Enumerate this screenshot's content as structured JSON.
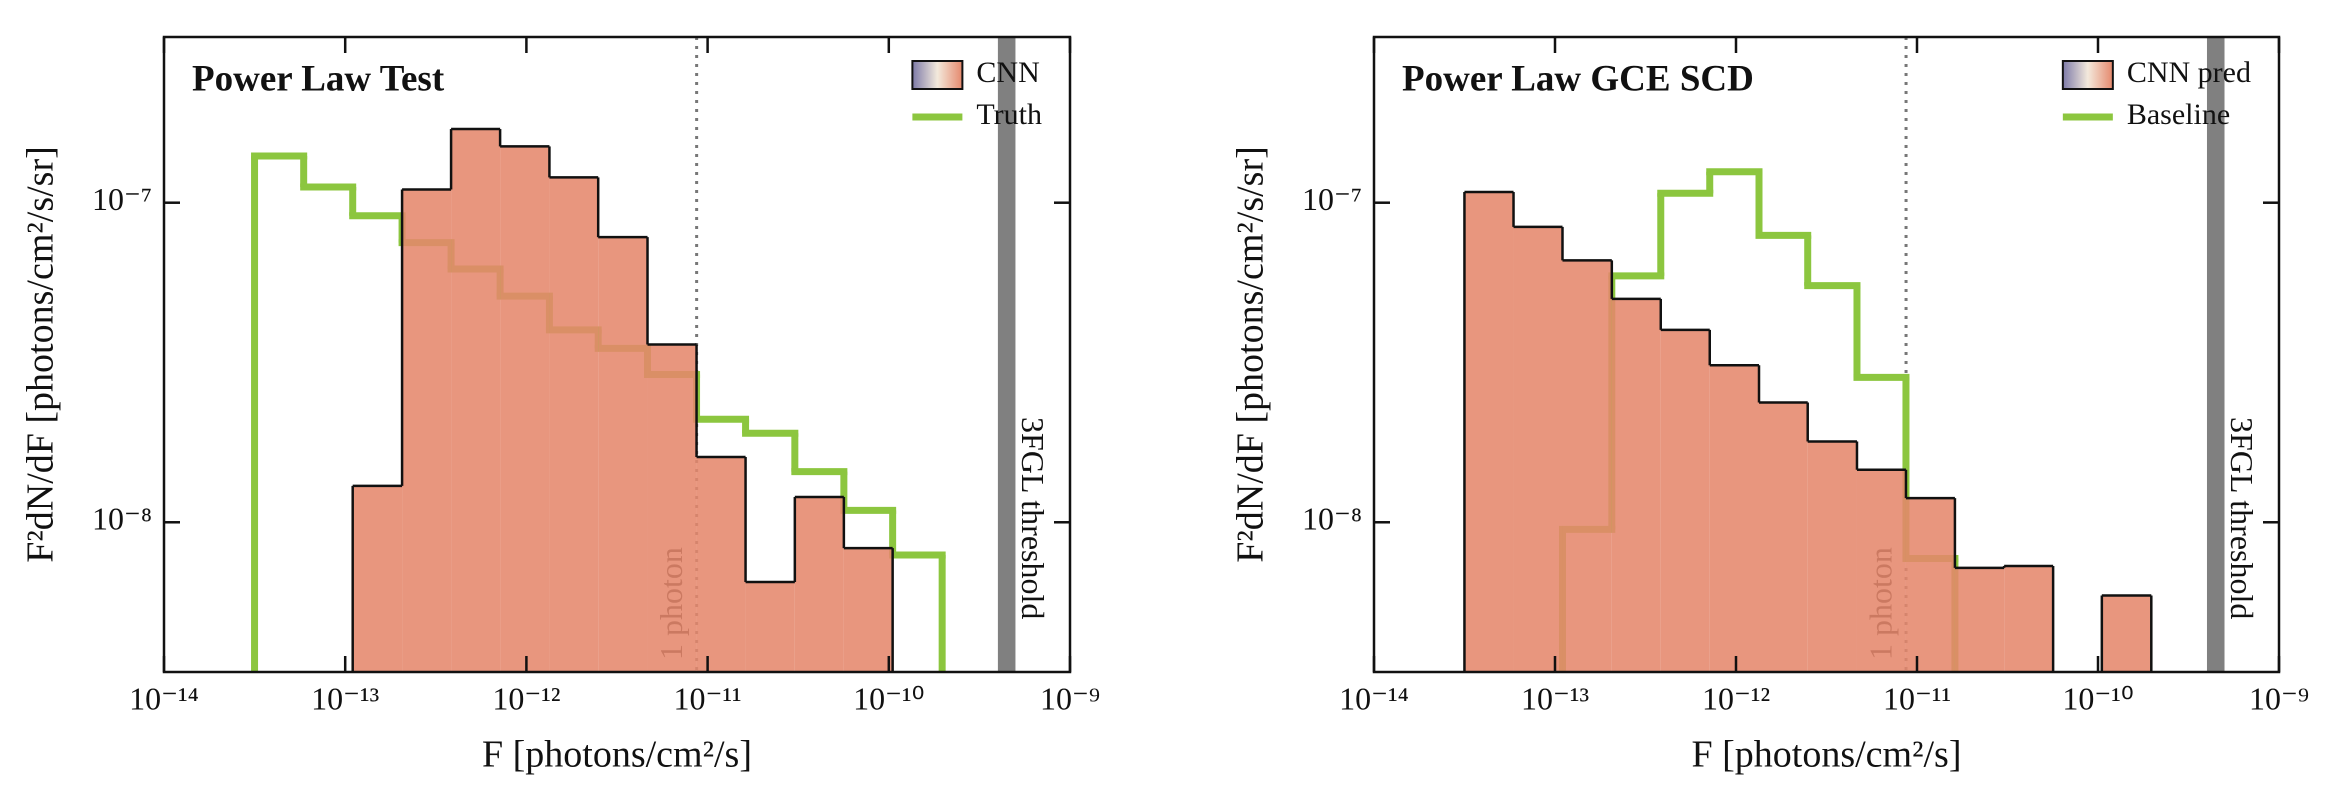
{
  "chart_data": [
    {
      "type": "histogram",
      "title": "Power Law Test",
      "xlabel": "F [photons/cm²/s]",
      "ylabel": "F²dN/dF [photons/cm²/s/sr]",
      "bins": [
        3.16e-14,
        5.9e-14,
        1.1e-13,
        2.06e-13,
        3.84e-13,
        7.16e-13,
        1.34e-12,
        2.49e-12,
        4.66e-12,
        8.69e-12,
        1.62e-11,
        3.03e-11,
        5.65e-11,
        1.05e-10,
        1.97e-10
      ],
      "series": [
        {
          "name": "CNN",
          "color": "#e5886c",
          "values": [
            null,
            null,
            1.3e-08,
            1.1e-07,
            1.7e-07,
            1.5e-07,
            1.2e-07,
            7.8e-08,
            3.6e-08,
            1.6e-08,
            6.5e-09,
            1.2e-08,
            8.3e-09,
            null
          ]
        },
        {
          "name": "Truth",
          "color": "#8cc63f",
          "values": [
            1.4e-07,
            1.12e-07,
            9.1e-08,
            7.5e-08,
            6.2e-08,
            5.1e-08,
            4e-08,
            3.5e-08,
            2.9e-08,
            2.1e-08,
            1.9e-08,
            1.44e-08,
            1.09e-08,
            7.9e-09
          ]
        }
      ],
      "xlim": [
        1e-14,
        1e-09
      ],
      "xticks": [
        {
          "value": 1e-14,
          "label": "10⁻¹⁴"
        },
        {
          "value": 1e-13,
          "label": "10⁻¹³"
        },
        {
          "value": 1e-12,
          "label": "10⁻¹²"
        },
        {
          "value": 1e-11,
          "label": "10⁻¹¹"
        },
        {
          "value": 1e-10,
          "label": "10⁻¹⁰"
        },
        {
          "value": 1e-09,
          "label": "10⁻⁹"
        }
      ],
      "ylim": [
        3.4e-09,
        3.3e-07
      ],
      "yticks": [
        {
          "value": 1e-08,
          "label": "10⁻⁸"
        },
        {
          "value": 1e-07,
          "label": "10⁻⁷"
        }
      ],
      "log_x": true,
      "log_y": true,
      "legend": "upper right",
      "annotations": [
        {
          "text": "1 photon",
          "x": 8.7e-12
        },
        {
          "text": "3FGL threshold",
          "xrange": [
            4e-10,
            5e-10
          ]
        }
      ]
    },
    {
      "type": "histogram",
      "title": "Power Law GCE SCD",
      "xlabel": "F [photons/cm²/s]",
      "ylabel": "F²dN/dF [photons/cm²/s/sr]",
      "bins": [
        3.16e-14,
        5.9e-14,
        1.1e-13,
        2.06e-13,
        3.84e-13,
        7.16e-13,
        1.34e-12,
        2.49e-12,
        4.66e-12,
        8.69e-12,
        1.62e-11,
        3.03e-11,
        5.65e-11,
        1.05e-10,
        1.97e-10
      ],
      "series": [
        {
          "name": "CNN pred",
          "color": "#e5886c",
          "values": [
            1.08e-07,
            8.4e-08,
            6.6e-08,
            5e-08,
            4e-08,
            3.1e-08,
            2.37e-08,
            1.79e-08,
            1.46e-08,
            1.19e-08,
            7.2e-09,
            7.3e-09,
            null,
            5.9e-09
          ]
        },
        {
          "name": "Baseline",
          "color": "#8cc63f",
          "values": [
            null,
            null,
            9.5e-09,
            5.9e-08,
            1.07e-07,
            1.25e-07,
            7.9e-08,
            5.5e-08,
            2.84e-08,
            7.7e-09,
            null,
            null,
            null,
            null
          ]
        }
      ],
      "xlim": [
        1e-14,
        1e-09
      ],
      "xticks": [
        {
          "value": 1e-14,
          "label": "10⁻¹⁴"
        },
        {
          "value": 1e-13,
          "label": "10⁻¹³"
        },
        {
          "value": 1e-12,
          "label": "10⁻¹²"
        },
        {
          "value": 1e-11,
          "label": "10⁻¹¹"
        },
        {
          "value": 1e-10,
          "label": "10⁻¹⁰"
        },
        {
          "value": 1e-09,
          "label": "10⁻⁹"
        }
      ],
      "ylim": [
        3.4e-09,
        3.3e-07
      ],
      "yticks": [
        {
          "value": 1e-08,
          "label": "10⁻⁸"
        },
        {
          "value": 1e-07,
          "label": "10⁻⁷"
        }
      ],
      "log_x": true,
      "log_y": true,
      "legend": "upper right",
      "annotations": [
        {
          "text": "1 photon",
          "x": 8.7e-12
        },
        {
          "text": "3FGL threshold",
          "xrange": [
            4e-10,
            5e-10
          ]
        }
      ]
    }
  ]
}
